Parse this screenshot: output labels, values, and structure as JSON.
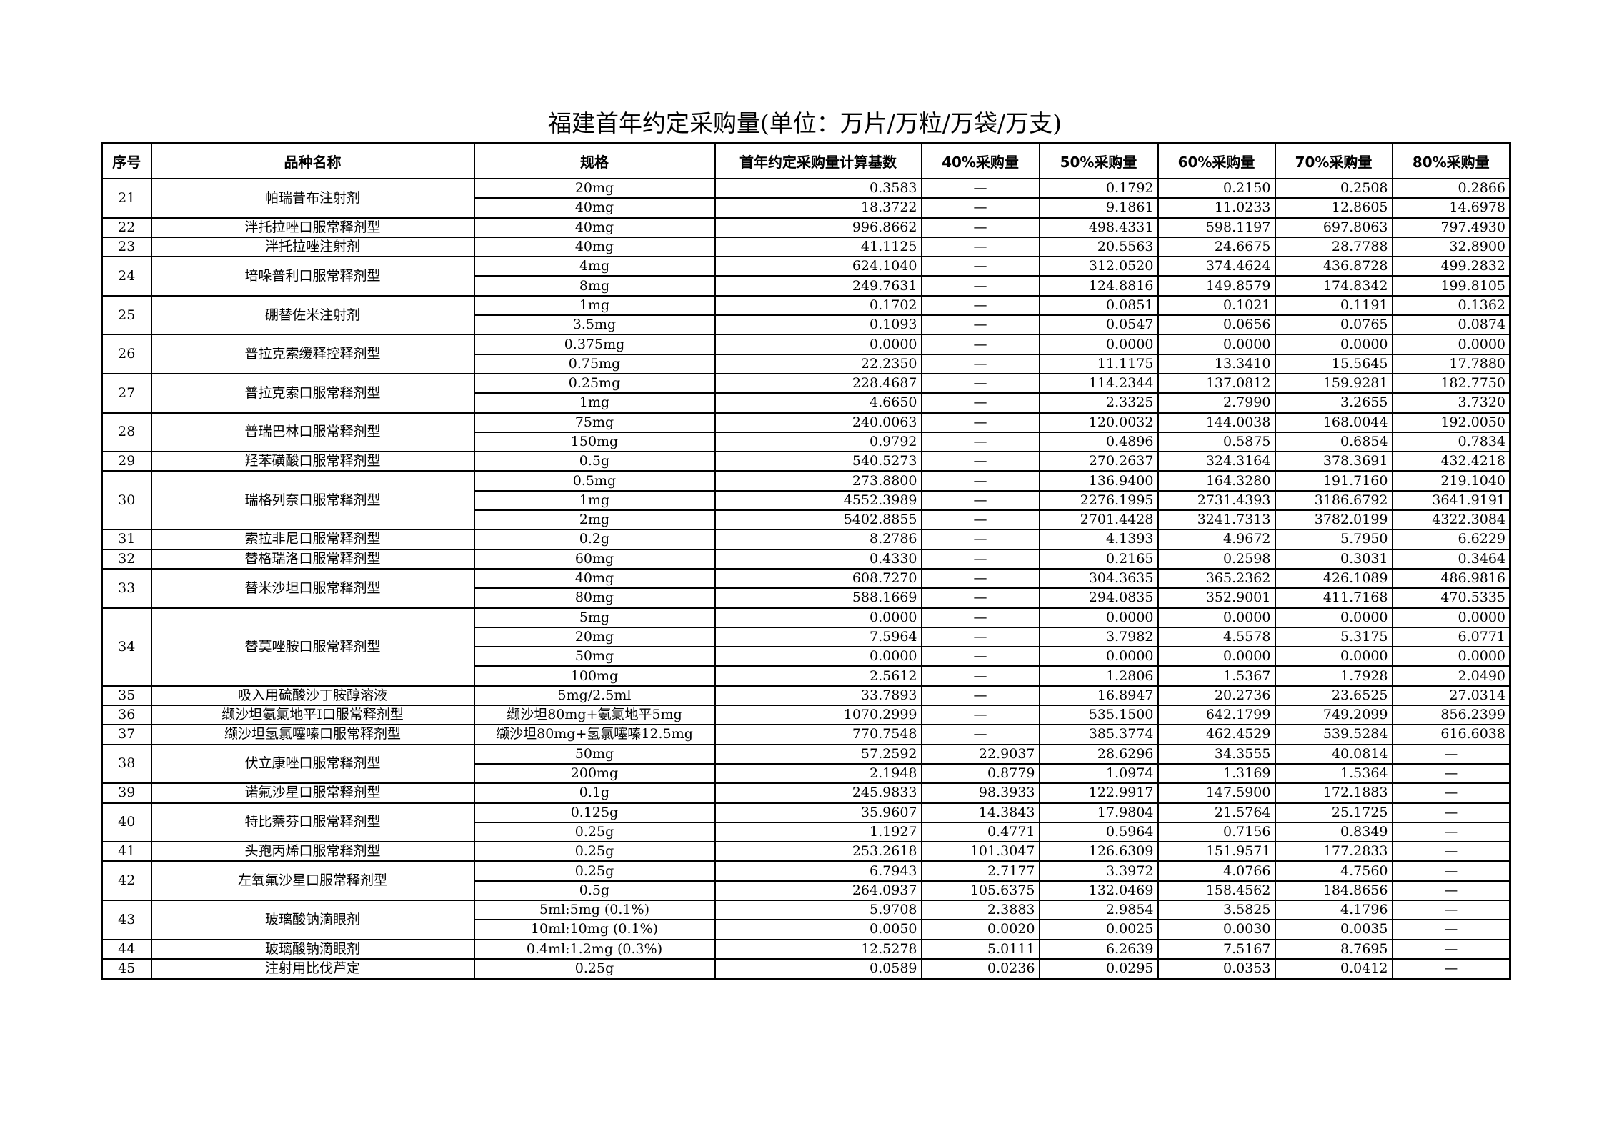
{
  "title": "福建首年约定采购量(单位：万片/万粒/万袋/万支)",
  "headers": [
    "序号",
    "品种名称",
    "规格",
    "首年约定采购量计算基数",
    "40%采购量",
    "50%采购量",
    "60%采购量",
    "70%采购量",
    "80%采购量"
  ],
  "items": [
    {
      "no": "21",
      "name": "帕瑞昔布注射剂",
      "rows": [
        [
          "20mg",
          "0.3583",
          "—",
          "0.1792",
          "0.2150",
          "0.2508",
          "0.2866"
        ],
        [
          "40mg",
          "18.3722",
          "—",
          "9.1861",
          "11.0233",
          "12.8605",
          "14.6978"
        ]
      ]
    },
    {
      "no": "22",
      "name": "泮托拉唑口服常释剂型",
      "rows": [
        [
          "40mg",
          "996.8662",
          "—",
          "498.4331",
          "598.1197",
          "697.8063",
          "797.4930"
        ]
      ]
    },
    {
      "no": "23",
      "name": "泮托拉唑注射剂",
      "rows": [
        [
          "40mg",
          "41.1125",
          "—",
          "20.5563",
          "24.6675",
          "28.7788",
          "32.8900"
        ]
      ]
    },
    {
      "no": "24",
      "name": "培哚普利口服常释剂型",
      "rows": [
        [
          "4mg",
          "624.1040",
          "—",
          "312.0520",
          "374.4624",
          "436.8728",
          "499.2832"
        ],
        [
          "8mg",
          "249.7631",
          "—",
          "124.8816",
          "149.8579",
          "174.8342",
          "199.8105"
        ]
      ]
    },
    {
      "no": "25",
      "name": "硼替佐米注射剂",
      "rows": [
        [
          "1mg",
          "0.1702",
          "—",
          "0.0851",
          "0.1021",
          "0.1191",
          "0.1362"
        ],
        [
          "3.5mg",
          "0.1093",
          "—",
          "0.0547",
          "0.0656",
          "0.0765",
          "0.0874"
        ]
      ]
    },
    {
      "no": "26",
      "name": "普拉克索缓释控释剂型",
      "rows": [
        [
          "0.375mg",
          "0.0000",
          "—",
          "0.0000",
          "0.0000",
          "0.0000",
          "0.0000"
        ],
        [
          "0.75mg",
          "22.2350",
          "—",
          "11.1175",
          "13.3410",
          "15.5645",
          "17.7880"
        ]
      ]
    },
    {
      "no": "27",
      "name": "普拉克索口服常释剂型",
      "rows": [
        [
          "0.25mg",
          "228.4687",
          "—",
          "114.2344",
          "137.0812",
          "159.9281",
          "182.7750"
        ],
        [
          "1mg",
          "4.6650",
          "—",
          "2.3325",
          "2.7990",
          "3.2655",
          "3.7320"
        ]
      ]
    },
    {
      "no": "28",
      "name": "普瑞巴林口服常释剂型",
      "rows": [
        [
          "75mg",
          "240.0063",
          "—",
          "120.0032",
          "144.0038",
          "168.0044",
          "192.0050"
        ],
        [
          "150mg",
          "0.9792",
          "—",
          "0.4896",
          "0.5875",
          "0.6854",
          "0.7834"
        ]
      ]
    },
    {
      "no": "29",
      "name": "羟苯磺酸口服常释剂型",
      "rows": [
        [
          "0.5g",
          "540.5273",
          "—",
          "270.2637",
          "324.3164",
          "378.3691",
          "432.4218"
        ]
      ]
    },
    {
      "no": "30",
      "name": "瑞格列奈口服常释剂型",
      "rows": [
        [
          "0.5mg",
          "273.8800",
          "—",
          "136.9400",
          "164.3280",
          "191.7160",
          "219.1040"
        ],
        [
          "1mg",
          "4552.3989",
          "—",
          "2276.1995",
          "2731.4393",
          "3186.6792",
          "3641.9191"
        ],
        [
          "2mg",
          "5402.8855",
          "—",
          "2701.4428",
          "3241.7313",
          "3782.0199",
          "4322.3084"
        ]
      ]
    },
    {
      "no": "31",
      "name": "索拉非尼口服常释剂型",
      "rows": [
        [
          "0.2g",
          "8.2786",
          "—",
          "4.1393",
          "4.9672",
          "5.7950",
          "6.6229"
        ]
      ]
    },
    {
      "no": "32",
      "name": "替格瑞洛口服常释剂型",
      "rows": [
        [
          "60mg",
          "0.4330",
          "—",
          "0.2165",
          "0.2598",
          "0.3031",
          "0.3464"
        ]
      ]
    },
    {
      "no": "33",
      "name": "替米沙坦口服常释剂型",
      "rows": [
        [
          "40mg",
          "608.7270",
          "—",
          "304.3635",
          "365.2362",
          "426.1089",
          "486.9816"
        ],
        [
          "80mg",
          "588.1669",
          "—",
          "294.0835",
          "352.9001",
          "411.7168",
          "470.5335"
        ]
      ]
    },
    {
      "no": "34",
      "name": "替莫唑胺口服常释剂型",
      "rows": [
        [
          "5mg",
          "0.0000",
          "—",
          "0.0000",
          "0.0000",
          "0.0000",
          "0.0000"
        ],
        [
          "20mg",
          "7.5964",
          "—",
          "3.7982",
          "4.5578",
          "5.3175",
          "6.0771"
        ],
        [
          "50mg",
          "0.0000",
          "—",
          "0.0000",
          "0.0000",
          "0.0000",
          "0.0000"
        ],
        [
          "100mg",
          "2.5612",
          "—",
          "1.2806",
          "1.5367",
          "1.7928",
          "2.0490"
        ]
      ]
    },
    {
      "no": "35",
      "name": "吸入用硫酸沙丁胺醇溶液",
      "rows": [
        [
          "5mg/2.5ml",
          "33.7893",
          "—",
          "16.8947",
          "20.2736",
          "23.6525",
          "27.0314"
        ]
      ]
    },
    {
      "no": "36",
      "name": "缬沙坦氨氯地平Ⅰ口服常释剂型",
      "rows": [
        [
          "缬沙坦80mg+氨氯地平5mg",
          "1070.2999",
          "—",
          "535.1500",
          "642.1799",
          "749.2099",
          "856.2399"
        ]
      ]
    },
    {
      "no": "37",
      "name": "缬沙坦氢氯噻嗪口服常释剂型",
      "rows": [
        [
          "缬沙坦80mg+氢氯噻嗪12.5mg",
          "770.7548",
          "—",
          "385.3774",
          "462.4529",
          "539.5284",
          "616.6038"
        ]
      ]
    },
    {
      "no": "38",
      "name": "伏立康唑口服常释剂型",
      "rows": [
        [
          "50mg",
          "57.2592",
          "22.9037",
          "28.6296",
          "34.3555",
          "40.0814",
          "—"
        ],
        [
          "200mg",
          "2.1948",
          "0.8779",
          "1.0974",
          "1.3169",
          "1.5364",
          "—"
        ]
      ]
    },
    {
      "no": "39",
      "name": "诺氟沙星口服常释剂型",
      "rows": [
        [
          "0.1g",
          "245.9833",
          "98.3933",
          "122.9917",
          "147.5900",
          "172.1883",
          "—"
        ]
      ]
    },
    {
      "no": "40",
      "name": "特比萘芬口服常释剂型",
      "rows": [
        [
          "0.125g",
          "35.9607",
          "14.3843",
          "17.9804",
          "21.5764",
          "25.1725",
          "—"
        ],
        [
          "0.25g",
          "1.1927",
          "0.4771",
          "0.5964",
          "0.7156",
          "0.8349",
          "—"
        ]
      ]
    },
    {
      "no": "41",
      "name": "头孢丙烯口服常释剂型",
      "rows": [
        [
          "0.25g",
          "253.2618",
          "101.3047",
          "126.6309",
          "151.9571",
          "177.2833",
          "—"
        ]
      ]
    },
    {
      "no": "42",
      "name": "左氧氟沙星口服常释剂型",
      "rows": [
        [
          "0.25g",
          "6.7943",
          "2.7177",
          "3.3972",
          "4.0766",
          "4.7560",
          "—"
        ],
        [
          "0.5g",
          "264.0937",
          "105.6375",
          "132.0469",
          "158.4562",
          "184.8656",
          "—"
        ]
      ]
    },
    {
      "no": "43",
      "name": "玻璃酸钠滴眼剂",
      "rows": [
        [
          "5ml:5mg (0.1%)",
          "5.9708",
          "2.3883",
          "2.9854",
          "3.5825",
          "4.1796",
          "—"
        ],
        [
          "10ml:10mg (0.1%)",
          "0.0050",
          "0.0020",
          "0.0025",
          "0.0030",
          "0.0035",
          "—"
        ]
      ]
    },
    {
      "no": "44",
      "name": "玻璃酸钠滴眼剂",
      "rows": [
        [
          "0.4ml:1.2mg (0.3%)",
          "12.5278",
          "5.0111",
          "6.2639",
          "7.5167",
          "8.7695",
          "—"
        ]
      ]
    },
    {
      "no": "45",
      "name": "注射用比伐芦定",
      "rows": [
        [
          "0.25g",
          "0.0589",
          "0.0236",
          "0.0295",
          "0.0353",
          "0.0412",
          "—"
        ]
      ]
    }
  ]
}
